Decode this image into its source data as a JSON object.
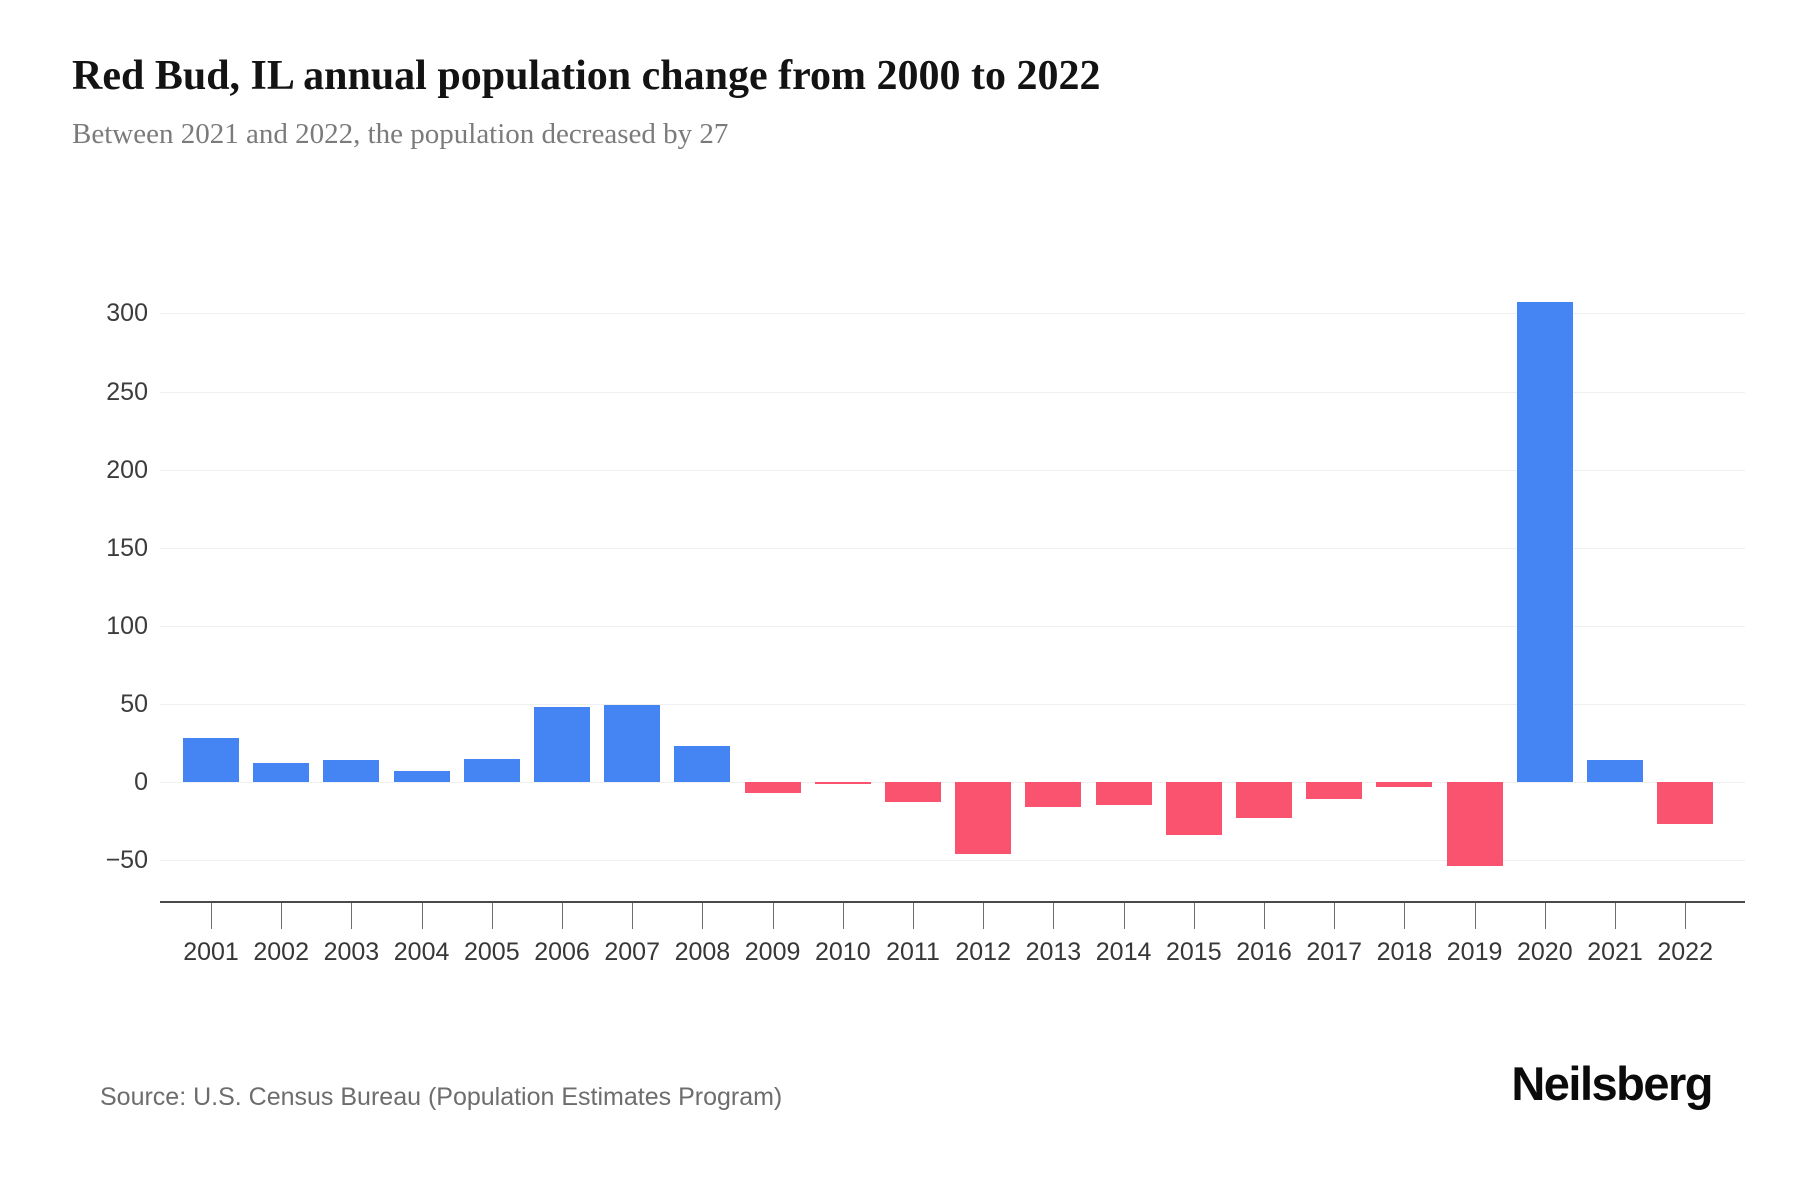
{
  "page": {
    "title": "Red Bud, IL annual population change from 2000 to 2022",
    "subtitle": "Between 2021 and 2022, the population decreased by 27",
    "source": "Source: U.S. Census Bureau (Population Estimates Program)",
    "brand": "Neilsberg"
  },
  "chart_data": {
    "type": "bar",
    "title": "Red Bud, IL annual population change from 2000 to 2022",
    "subtitle": "Between 2021 and 2022, the population decreased by 27",
    "categories": [
      "2001",
      "2002",
      "2003",
      "2004",
      "2005",
      "2006",
      "2007",
      "2008",
      "2009",
      "2010",
      "2011",
      "2012",
      "2013",
      "2014",
      "2015",
      "2016",
      "2017",
      "2018",
      "2019",
      "2020",
      "2021",
      "2022"
    ],
    "values": [
      28,
      12,
      14,
      7,
      15,
      48,
      49,
      23,
      -7,
      -1,
      -13,
      -46,
      -16,
      -15,
      -34,
      -23,
      -11,
      -3,
      -54,
      307,
      14,
      -27
    ],
    "xlabel": "",
    "ylabel": "",
    "ylim": [
      -75,
      335
    ],
    "yticks": [
      300,
      250,
      200,
      150,
      100,
      50,
      0,
      -50
    ],
    "grid": "horizontal",
    "legend": "none",
    "positive_color": "#4485F3",
    "negative_color": "#F9536F",
    "source": "Source: U.S. Census Bureau (Population Estimates Program)"
  }
}
